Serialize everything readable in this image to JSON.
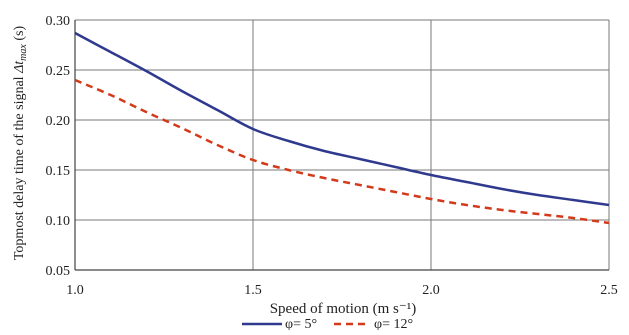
{
  "chart_data": {
    "type": "line",
    "title": "",
    "xlabel": "Speed of motion (m s⁻¹)",
    "ylabel_main": "Topmost delay time of the signal ",
    "ylabel_sym": "Δt",
    "ylabel_sub": "max",
    "ylabel_unit": " (s)",
    "xlim": [
      1.0,
      2.5
    ],
    "ylim": [
      0.05,
      0.3
    ],
    "xticks": [
      1.0,
      1.5,
      2.0,
      2.5
    ],
    "xtick_labels": [
      "1.0",
      "1.5",
      "2.0",
      "2.5"
    ],
    "yticks": [
      0.05,
      0.1,
      0.15,
      0.2,
      0.25,
      0.3
    ],
    "ytick_labels": [
      "0.05",
      "0.10",
      "0.15",
      "0.20",
      "0.25",
      "0.30"
    ],
    "grid": true,
    "legend_position": "bottom",
    "series": [
      {
        "name": "φ= 5°",
        "color": "#2f3a8f",
        "style": "solid",
        "x": [
          1.0,
          1.1,
          1.2,
          1.3,
          1.4,
          1.5,
          1.6,
          1.7,
          1.8,
          1.9,
          2.0,
          2.1,
          2.2,
          2.3,
          2.4,
          2.5
        ],
        "y": [
          0.287,
          0.268,
          0.249,
          0.229,
          0.21,
          0.191,
          0.179,
          0.169,
          0.161,
          0.153,
          0.145,
          0.138,
          0.131,
          0.125,
          0.12,
          0.115
        ]
      },
      {
        "name": "φ= 12°",
        "color": "#d23a1a",
        "style": "dashed",
        "x": [
          1.0,
          1.1,
          1.2,
          1.3,
          1.4,
          1.5,
          1.6,
          1.7,
          1.8,
          1.9,
          2.0,
          2.1,
          2.2,
          2.3,
          2.4,
          2.5
        ],
        "y": [
          0.24,
          0.225,
          0.208,
          0.192,
          0.175,
          0.16,
          0.15,
          0.142,
          0.135,
          0.128,
          0.121,
          0.115,
          0.11,
          0.106,
          0.102,
          0.097
        ]
      }
    ]
  }
}
